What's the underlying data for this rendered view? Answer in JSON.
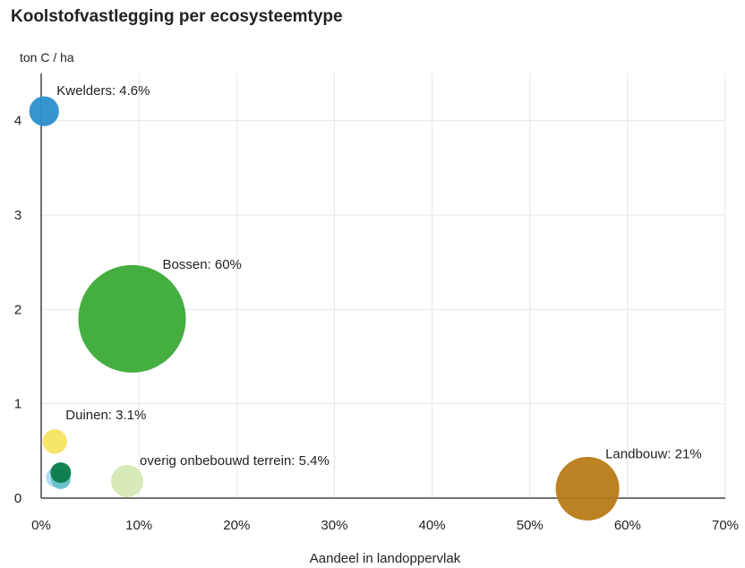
{
  "chart_data": {
    "type": "scatter",
    "title": "Koolstofvastlegging per ecosysteemtype",
    "ylabel": "ton C / ha",
    "xlabel": "Aandeel in landoppervlak",
    "xlim": [
      0,
      70
    ],
    "ylim": [
      0,
      4.5
    ],
    "x_ticks": [
      "0%",
      "10%",
      "20%",
      "30%",
      "40%",
      "50%",
      "60%",
      "70%"
    ],
    "y_ticks": [
      "0",
      "1",
      "2",
      "3",
      "4"
    ],
    "grid": true,
    "points": [
      {
        "label": "Kwelders: 4.6%",
        "x": 0.3,
        "y": 4.1,
        "share": 4.6,
        "color": "#2b8fcc"
      },
      {
        "label": "Bossen: 60%",
        "x": 9.3,
        "y": 1.9,
        "share": 60,
        "color": "#3aaa35"
      },
      {
        "label": "Duinen: 3.1%",
        "x": 1.4,
        "y": 0.6,
        "share": 3.1,
        "color": "#f7e463"
      },
      {
        "label": "",
        "x": 1.5,
        "y": 0.22,
        "share": 2.0,
        "color": "#a9dcf0"
      },
      {
        "label": "",
        "x": 2.0,
        "y": 0.2,
        "share": 2.0,
        "color": "#66c0c8"
      },
      {
        "label": "",
        "x": 2.0,
        "y": 0.27,
        "share": 2.2,
        "color": "#0a7a4a"
      },
      {
        "label": "overig onbebouwd terrein: 5.4%",
        "x": 8.8,
        "y": 0.18,
        "share": 5.4,
        "color": "#d6e8b4"
      },
      {
        "label": "Landbouw: 21%",
        "x": 55.9,
        "y": 0.1,
        "share": 21,
        "color": "#b87a16"
      }
    ]
  }
}
